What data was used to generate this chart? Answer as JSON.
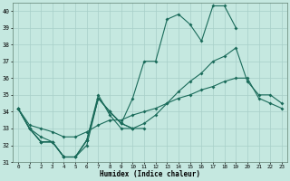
{
  "title": "",
  "xlabel": "Humidex (Indice chaleur)",
  "xlim": [
    -0.5,
    23.5
  ],
  "ylim": [
    31,
    40.5
  ],
  "yticks": [
    31,
    32,
    33,
    34,
    35,
    36,
    37,
    38,
    39,
    40
  ],
  "xticks": [
    0,
    1,
    2,
    3,
    4,
    5,
    6,
    7,
    8,
    9,
    10,
    11,
    12,
    13,
    14,
    15,
    16,
    17,
    18,
    19,
    20,
    21,
    22,
    23
  ],
  "background_color": "#c5e8e0",
  "grid_color": "#a8cfc8",
  "line_color": "#1a6b5a",
  "lines": [
    {
      "x": [
        0,
        1,
        2,
        3,
        4,
        5,
        6,
        7,
        8,
        9,
        10
      ],
      "y": [
        34.2,
        33.0,
        32.2,
        32.2,
        31.3,
        31.3,
        32.3,
        35.0,
        33.8,
        33.0,
        33.0
      ]
    },
    {
      "x": [
        0,
        1,
        2,
        3,
        4,
        5,
        6,
        7,
        8,
        9,
        10,
        11,
        12,
        13,
        14,
        15,
        16,
        17,
        18,
        19
      ],
      "y": [
        34.2,
        33.0,
        32.2,
        32.2,
        31.3,
        31.3,
        32.0,
        34.8,
        34.0,
        33.3,
        34.8,
        37.0,
        37.0,
        39.5,
        39.8,
        39.2,
        38.2,
        40.3,
        40.3,
        39.0
      ]
    },
    {
      "x": [
        0,
        1,
        2,
        3,
        4,
        5,
        6,
        7,
        8,
        9,
        10,
        11
      ],
      "y": [
        34.2,
        33.0,
        32.2,
        32.2,
        31.3,
        31.3,
        32.3,
        34.8,
        34.0,
        33.3,
        33.0,
        33.0
      ]
    },
    {
      "x": [
        0,
        1,
        2,
        3,
        4,
        5,
        6,
        7,
        8,
        9,
        10,
        11,
        12,
        13,
        14,
        15,
        16,
        17,
        18,
        19,
        20,
        21,
        22,
        23
      ],
      "y": [
        34.2,
        33.0,
        32.5,
        32.2,
        31.3,
        31.3,
        32.3,
        34.8,
        34.0,
        33.3,
        33.0,
        33.3,
        33.8,
        34.5,
        35.2,
        35.8,
        36.3,
        37.0,
        37.3,
        37.8,
        35.8,
        35.0,
        35.0,
        34.5
      ]
    },
    {
      "x": [
        0,
        1,
        2,
        3,
        4,
        5,
        6,
        7,
        8,
        9,
        10,
        11,
        12,
        13,
        14,
        15,
        16,
        17,
        18,
        19,
        20,
        21,
        22,
        23
      ],
      "y": [
        34.2,
        33.2,
        33.0,
        32.8,
        32.5,
        32.5,
        32.8,
        33.2,
        33.5,
        33.5,
        33.8,
        34.0,
        34.2,
        34.5,
        34.8,
        35.0,
        35.3,
        35.5,
        35.8,
        36.0,
        36.0,
        34.8,
        34.5,
        34.2
      ]
    }
  ]
}
